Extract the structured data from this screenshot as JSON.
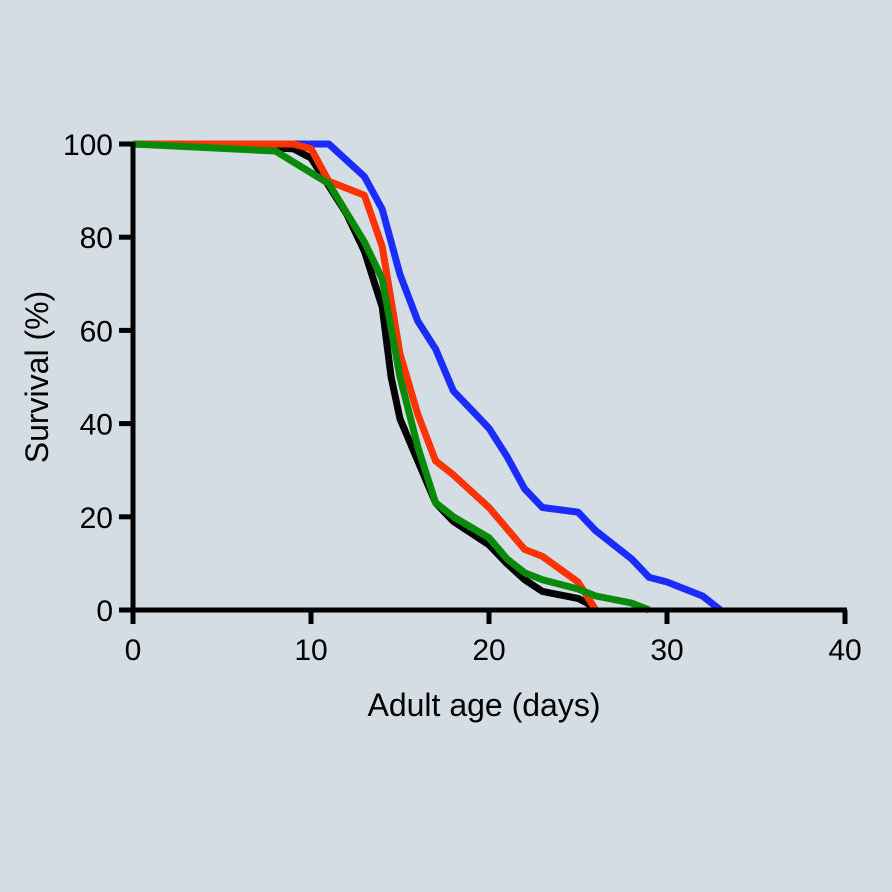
{
  "chart_data": {
    "type": "line",
    "title": "",
    "xlabel": "Adult age (days)",
    "ylabel": "Survival (%)",
    "xlim": [
      0,
      40
    ],
    "ylim": [
      0,
      100
    ],
    "xticks": [
      0,
      10,
      20,
      30,
      40
    ],
    "yticks": [
      0,
      20,
      40,
      60,
      80,
      100
    ],
    "grid": false,
    "legend": "none",
    "background": "#d4dde4",
    "series": [
      {
        "color": "#000000",
        "points": [
          [
            0,
            100
          ],
          [
            9,
            99
          ],
          [
            10,
            97
          ],
          [
            12,
            85
          ],
          [
            13,
            77
          ],
          [
            14,
            65
          ],
          [
            14.5,
            50
          ],
          [
            15,
            41
          ],
          [
            16,
            32
          ],
          [
            17,
            23
          ],
          [
            18,
            19
          ],
          [
            20,
            14
          ],
          [
            21,
            10
          ],
          [
            22,
            6.5
          ],
          [
            23,
            4
          ],
          [
            25,
            2.5
          ],
          [
            25.5,
            1.5
          ],
          [
            26,
            0
          ]
        ]
      },
      {
        "color": "#1a2cff",
        "points": [
          [
            0,
            100
          ],
          [
            11,
            100
          ],
          [
            13,
            93
          ],
          [
            14,
            86
          ],
          [
            15,
            72
          ],
          [
            16,
            62
          ],
          [
            17,
            56
          ],
          [
            18,
            47
          ],
          [
            19,
            43
          ],
          [
            20,
            39
          ],
          [
            21,
            33
          ],
          [
            22,
            26
          ],
          [
            23,
            22
          ],
          [
            25,
            21
          ],
          [
            26,
            17
          ],
          [
            27,
            14
          ],
          [
            28,
            11
          ],
          [
            29,
            7
          ],
          [
            30,
            6
          ],
          [
            31,
            4.5
          ],
          [
            32,
            3
          ],
          [
            33,
            0
          ]
        ]
      },
      {
        "color": "#ff3300",
        "points": [
          [
            0,
            100
          ],
          [
            9,
            100
          ],
          [
            10,
            99
          ],
          [
            11,
            92
          ],
          [
            13,
            89
          ],
          [
            14,
            78
          ],
          [
            15,
            55
          ],
          [
            16,
            42
          ],
          [
            17,
            32
          ],
          [
            18,
            29
          ],
          [
            20,
            22
          ],
          [
            22,
            13
          ],
          [
            23,
            11.5
          ],
          [
            25,
            6
          ],
          [
            26,
            0
          ]
        ]
      },
      {
        "color": "#0a8a0a",
        "points": [
          [
            0,
            100
          ],
          [
            8,
            98.5
          ],
          [
            11,
            91.5
          ],
          [
            13,
            79
          ],
          [
            14,
            71
          ],
          [
            15,
            50
          ],
          [
            16,
            35
          ],
          [
            17,
            23
          ],
          [
            18,
            20
          ],
          [
            20,
            15.5
          ],
          [
            21,
            11
          ],
          [
            22,
            8
          ],
          [
            23,
            6.5
          ],
          [
            25,
            4.5
          ],
          [
            26,
            3
          ],
          [
            28,
            1.5
          ],
          [
            29,
            0
          ]
        ]
      }
    ]
  }
}
